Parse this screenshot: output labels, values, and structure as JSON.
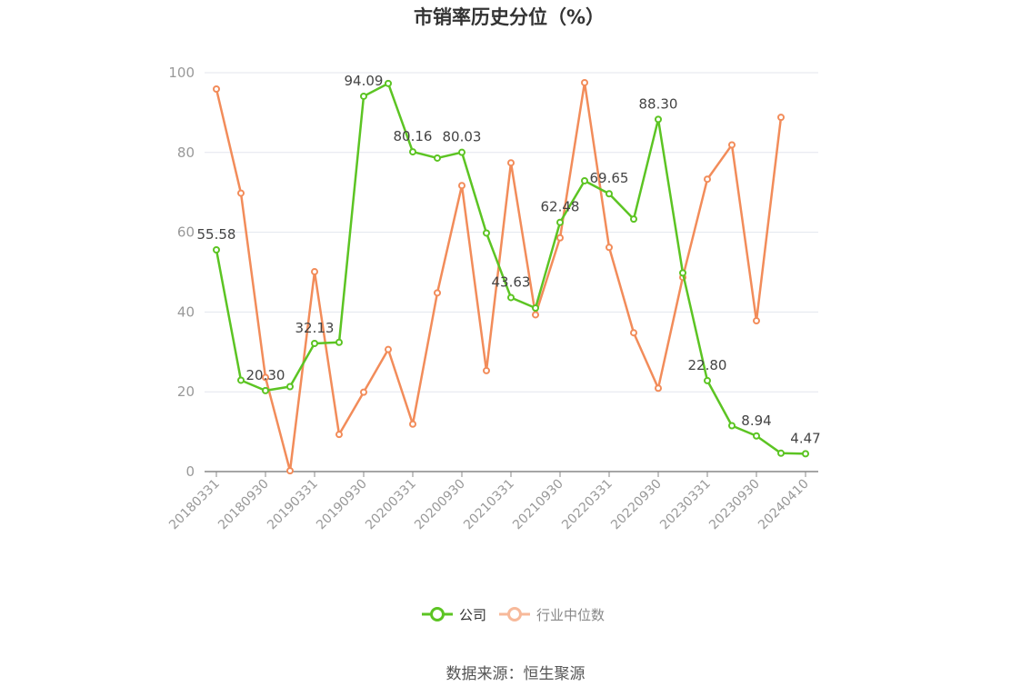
{
  "title": "市销率历史分位（%）",
  "source": "数据来源：恒生聚源",
  "chart_data": {
    "type": "line",
    "title": "市销率历史分位（%）",
    "ylim": [
      0,
      100
    ],
    "yticks": [
      0,
      20,
      40,
      60,
      80,
      100
    ],
    "grid": true,
    "legend_position": "bottom",
    "x": [
      "20180331",
      "20180630",
      "20180930",
      "20181231",
      "20190331",
      "20190630",
      "20190930",
      "20191231",
      "20200331",
      "20200630",
      "20200930",
      "20201231",
      "20210331",
      "20210630",
      "20210930",
      "20211231",
      "20220331",
      "20220630",
      "20220930",
      "20221231",
      "20230331",
      "20230630",
      "20230930",
      "20231231",
      "20240410"
    ],
    "xtick_labels": [
      "20180331",
      "20180930",
      "20190331",
      "20190930",
      "20200331",
      "20200930",
      "20210331",
      "20210930",
      "20220331",
      "20220930",
      "20230331",
      "20230930",
      "20240410"
    ],
    "series": [
      {
        "name": "公司",
        "color": "#5cc423",
        "values": [
          55.58,
          22.9,
          20.3,
          21.3,
          32.13,
          32.4,
          94.09,
          97.3,
          80.16,
          78.6,
          80.03,
          59.8,
          43.63,
          41.0,
          62.48,
          72.9,
          69.65,
          63.3,
          88.3,
          49.8,
          22.8,
          11.5,
          8.94,
          4.6,
          4.47
        ],
        "labels": [
          "55.58",
          null,
          "20.30",
          null,
          "32.13",
          null,
          "94.09",
          null,
          "80.16",
          null,
          "80.03",
          null,
          "43.63",
          null,
          "62.48",
          null,
          "69.65",
          null,
          "88.30",
          null,
          "22.80",
          null,
          "8.94",
          null,
          "4.47"
        ]
      },
      {
        "name": "行业中位数",
        "color": "#f28c5a",
        "values": [
          95.9,
          69.8,
          23.6,
          0.2,
          50.1,
          9.3,
          19.9,
          30.6,
          11.9,
          44.8,
          71.7,
          25.3,
          77.4,
          39.3,
          58.6,
          97.5,
          56.2,
          34.8,
          20.9,
          48.7,
          73.3,
          81.9,
          37.8,
          88.8,
          null
        ]
      }
    ]
  }
}
